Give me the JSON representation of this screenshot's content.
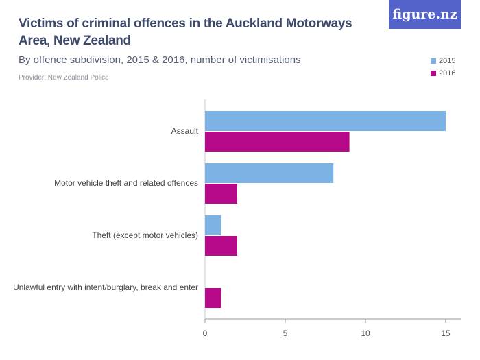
{
  "header": {
    "title": "Victims of criminal offences in the Auckland Motorways Area, New Zealand",
    "subtitle": "By offence subdivision, 2015 & 2016, number of victimisations",
    "provider": "Provider: New Zealand Police",
    "logo": "figure.nz"
  },
  "chart_data": {
    "type": "bar",
    "orientation": "horizontal",
    "title": "Victims of criminal offences in the Auckland Motorways Area, New Zealand",
    "subtitle": "By offence subdivision, 2015 & 2016, number of victimisations",
    "categories": [
      "Assault",
      "Motor vehicle theft and related offences",
      "Theft (except motor vehicles)",
      "Unlawful entry with intent/burglary, break and enter"
    ],
    "series": [
      {
        "name": "2015",
        "color": "#7cb3e4",
        "values": [
          15,
          8,
          1,
          0
        ]
      },
      {
        "name": "2016",
        "color": "#b5098a",
        "values": [
          9,
          2,
          2,
          1
        ]
      }
    ],
    "xlim": [
      0,
      15
    ],
    "xticks": [
      "0",
      "5",
      "10",
      "15"
    ],
    "legend": "top-right",
    "grid": false
  }
}
